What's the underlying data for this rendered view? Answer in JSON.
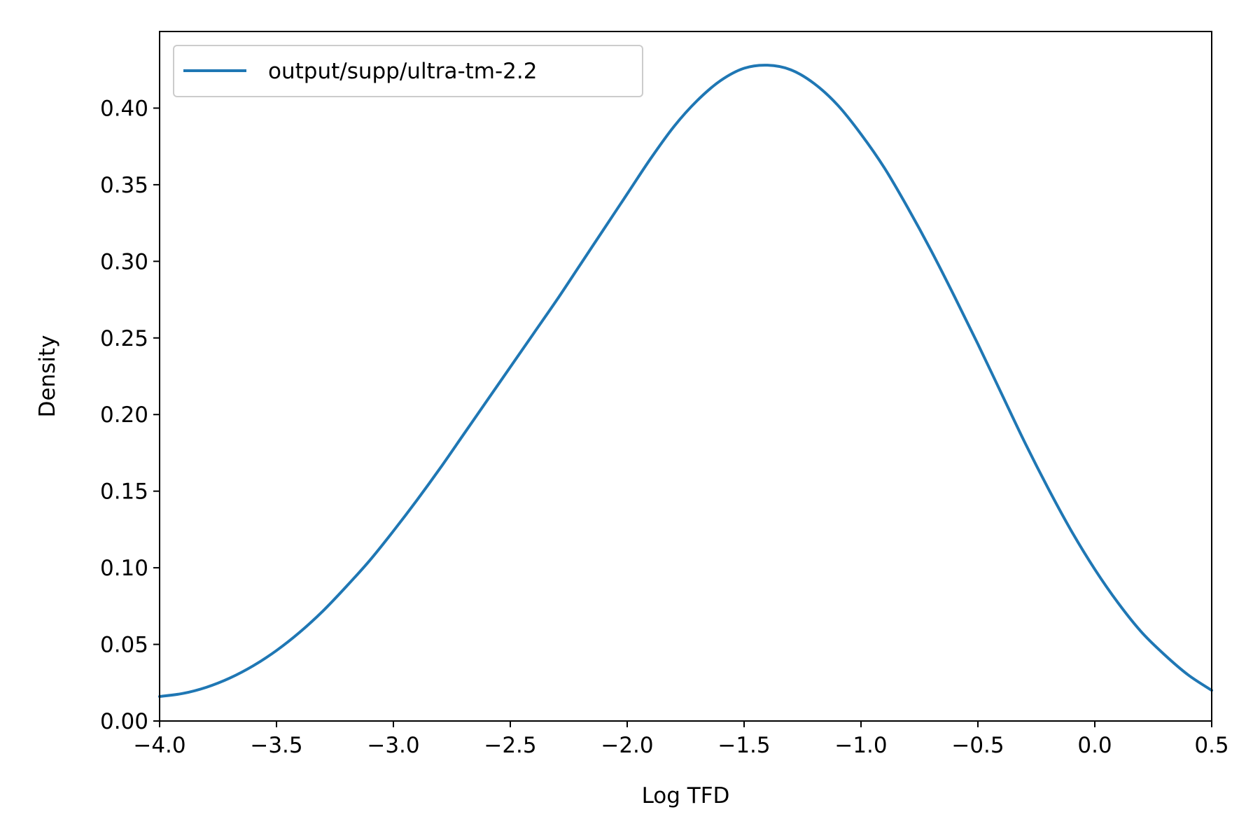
{
  "chart_data": {
    "type": "line",
    "title": "",
    "xlabel": "Log TFD",
    "ylabel": "Density",
    "xlim": [
      -4.0,
      0.5
    ],
    "ylim": [
      0.0,
      0.45
    ],
    "x_ticks": [
      -4.0,
      -3.5,
      -3.0,
      -2.5,
      -2.0,
      -1.5,
      -1.0,
      -0.5,
      0.0,
      0.5
    ],
    "x_tick_labels": [
      "−4.0",
      "−3.5",
      "−3.0",
      "−2.5",
      "−2.0",
      "−1.5",
      "−1.0",
      "−0.5",
      "0.0",
      "0.5"
    ],
    "y_ticks": [
      0.0,
      0.05,
      0.1,
      0.15,
      0.2,
      0.25,
      0.3,
      0.35,
      0.4
    ],
    "y_tick_labels": [
      "0.00",
      "0.05",
      "0.10",
      "0.15",
      "0.20",
      "0.25",
      "0.30",
      "0.35",
      "0.40"
    ],
    "grid": false,
    "legend": {
      "placement": "top-left"
    },
    "series": [
      {
        "name": "output/supp/ultra-tm-2.2",
        "color": "#1f77b4",
        "x": [
          -4.0,
          -3.9,
          -3.8,
          -3.7,
          -3.6,
          -3.5,
          -3.4,
          -3.3,
          -3.2,
          -3.1,
          -3.0,
          -2.9,
          -2.8,
          -2.7,
          -2.6,
          -2.5,
          -2.4,
          -2.3,
          -2.2,
          -2.1,
          -2.0,
          -1.9,
          -1.8,
          -1.7,
          -1.6,
          -1.5,
          -1.4,
          -1.3,
          -1.2,
          -1.1,
          -1.0,
          -0.9,
          -0.8,
          -0.7,
          -0.6,
          -0.5,
          -0.4,
          -0.3,
          -0.2,
          -0.1,
          0.0,
          0.1,
          0.2,
          0.3,
          0.4,
          0.5
        ],
        "y": [
          0.016,
          0.018,
          0.022,
          0.028,
          0.036,
          0.046,
          0.058,
          0.072,
          0.088,
          0.105,
          0.124,
          0.144,
          0.165,
          0.187,
          0.209,
          0.231,
          0.253,
          0.275,
          0.298,
          0.321,
          0.344,
          0.367,
          0.388,
          0.405,
          0.418,
          0.426,
          0.428,
          0.425,
          0.416,
          0.402,
          0.383,
          0.361,
          0.335,
          0.307,
          0.277,
          0.246,
          0.214,
          0.182,
          0.152,
          0.124,
          0.099,
          0.077,
          0.058,
          0.043,
          0.03,
          0.02
        ]
      }
    ]
  }
}
